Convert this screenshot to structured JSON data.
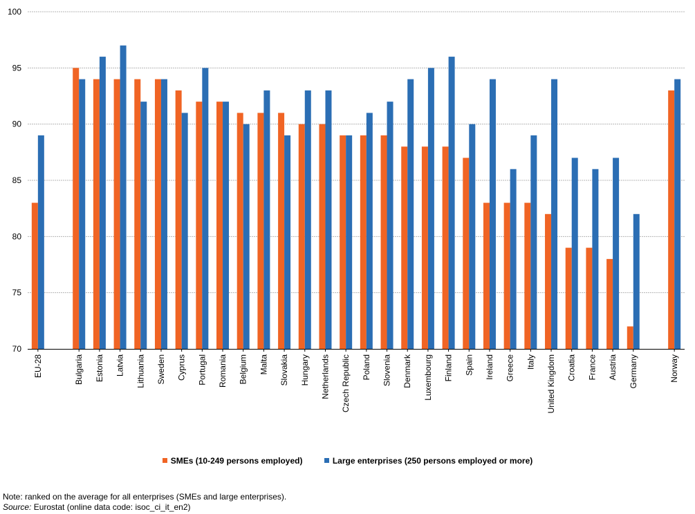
{
  "chart_data": {
    "type": "bar",
    "categories": [
      "EU-28",
      "Bulgaria",
      "Estonia",
      "Latvia",
      "Lithuania",
      "Sweden",
      "Cyprus",
      "Portugal",
      "Romania",
      "Belgium",
      "Malta",
      "Slovakia",
      "Hungary",
      "Netherlands",
      "Czech Republic",
      "Poland",
      "Slovenia",
      "Denmark",
      "Luxembourg",
      "Finland",
      "Spain",
      "Ireland",
      "Greece",
      "Italy",
      "United Kingdom",
      "Croatia",
      "France",
      "Austria",
      "Germany",
      "Norway"
    ],
    "series": [
      {
        "name": "SMEs (10-249 persons employed)",
        "color": "#F06424",
        "values": [
          83,
          95,
          94,
          94,
          94,
          94,
          93,
          92,
          92,
          91,
          91,
          91,
          90,
          90,
          89,
          89,
          89,
          88,
          88,
          88,
          87,
          83,
          83,
          83,
          82,
          79,
          79,
          78,
          72,
          93
        ]
      },
      {
        "name": "Large enterprises (250 persons employed or more)",
        "color": "#2B6EB4",
        "values": [
          89,
          94,
          96,
          97,
          92,
          94,
          91,
          95,
          92,
          90,
          93,
          89,
          93,
          93,
          89,
          91,
          92,
          94,
          95,
          96,
          90,
          94,
          86,
          89,
          94,
          87,
          86,
          87,
          82,
          94
        ]
      }
    ],
    "yticks": [
      70,
      75,
      80,
      85,
      90,
      95,
      100
    ],
    "ylim": [
      70,
      100
    ],
    "grid": true,
    "legend_position": "bottom"
  },
  "footer": {
    "note": "Note: ranked on the average for all enterprises (SMEs and large enterprises).",
    "source_label": "Source:",
    "source_text": " Eurostat (online data code: isoc_ci_it_en2)"
  }
}
